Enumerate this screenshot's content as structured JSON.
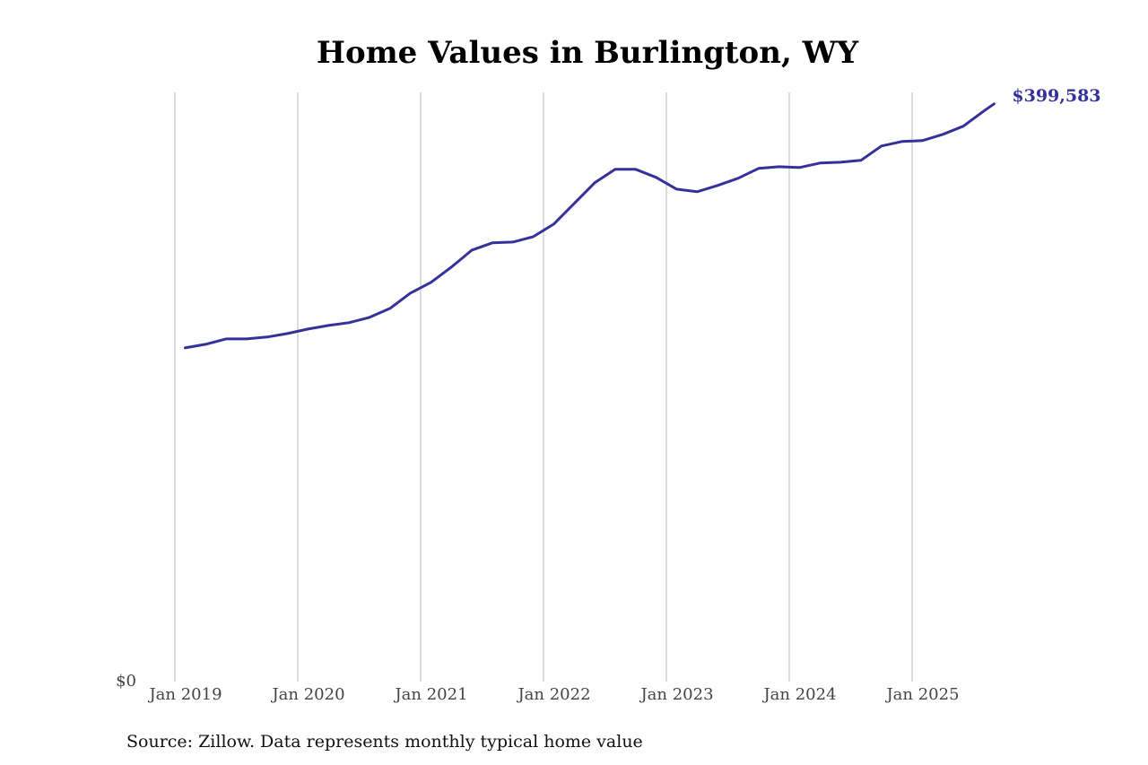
{
  "chart_data": {
    "type": "line",
    "title": "Home Values in Burlington, WY",
    "source": "Source: Zillow. Data represents monthly typical home value",
    "x": [
      2019.083,
      2019.25,
      2019.417,
      2019.583,
      2019.75,
      2019.917,
      2020.083,
      2020.25,
      2020.417,
      2020.583,
      2020.75,
      2020.917,
      2021.083,
      2021.25,
      2021.417,
      2021.583,
      2021.75,
      2021.917,
      2022.083,
      2022.25,
      2022.417,
      2022.583,
      2022.75,
      2022.917,
      2023.083,
      2023.25,
      2023.417,
      2023.583,
      2023.75,
      2023.917,
      2024.083,
      2024.25,
      2024.417,
      2024.583,
      2024.75,
      2024.917,
      2025.083,
      2025.25,
      2025.417,
      2025.583,
      2025.667
    ],
    "values": [
      230800,
      233300,
      237000,
      237000,
      238300,
      240700,
      243800,
      246300,
      248200,
      251900,
      258100,
      268700,
      276100,
      286700,
      298400,
      303400,
      304000,
      307700,
      316400,
      330700,
      345000,
      354300,
      354300,
      348700,
      340600,
      338800,
      343100,
      348100,
      354900,
      356100,
      355500,
      358600,
      359200,
      360500,
      370400,
      373500,
      374100,
      378500,
      384100,
      394600,
      399583
    ],
    "last_value_label": "$399,583",
    "color": "#35319a",
    "xlim": [
      2019,
      2026
    ],
    "xticks": [
      {
        "value": 2019,
        "label": "Jan 2019"
      },
      {
        "value": 2020,
        "label": "Jan 2020"
      },
      {
        "value": 2021,
        "label": "Jan 2021"
      },
      {
        "value": 2022,
        "label": "Jan 2022"
      },
      {
        "value": 2023,
        "label": "Jan 2023"
      },
      {
        "value": 2024,
        "label": "Jan 2024"
      },
      {
        "value": 2025,
        "label": "Jan 2025"
      }
    ],
    "ylim": [
      0,
      407500
    ],
    "yticks": [
      {
        "value": 0,
        "label": "$0"
      }
    ],
    "grid": "x"
  }
}
